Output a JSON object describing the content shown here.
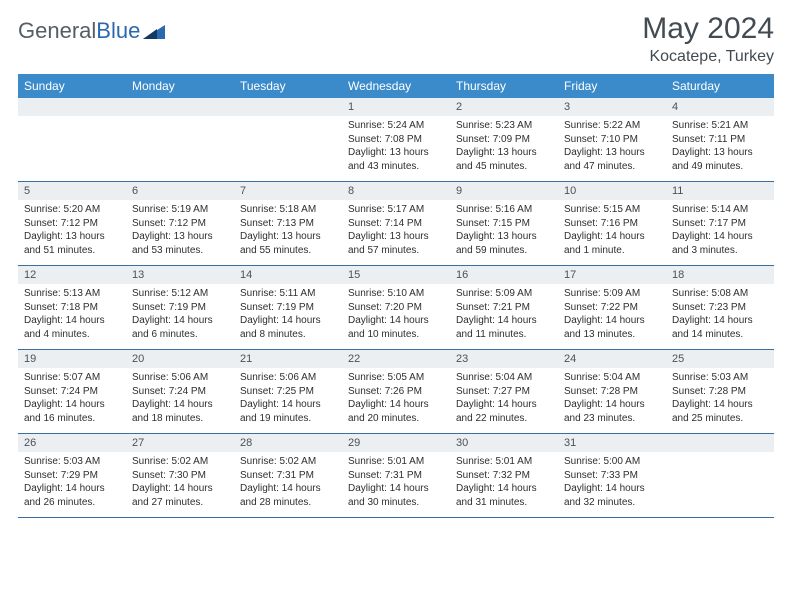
{
  "brand": {
    "part1": "General",
    "part2": "Blue"
  },
  "title": "May 2024",
  "location": "Kocatepe, Turkey",
  "dow": [
    "Sunday",
    "Monday",
    "Tuesday",
    "Wednesday",
    "Thursday",
    "Friday",
    "Saturday"
  ],
  "colors": {
    "header_bg": "#3b8bca",
    "header_text": "#ffffff",
    "daynum_bg": "#eceff1",
    "border": "#3b6fa0",
    "title_color": "#424a52"
  },
  "weeks": [
    [
      {
        "n": "",
        "sr": "",
        "ss": "",
        "dl": ""
      },
      {
        "n": "",
        "sr": "",
        "ss": "",
        "dl": ""
      },
      {
        "n": "",
        "sr": "",
        "ss": "",
        "dl": ""
      },
      {
        "n": "1",
        "sr": "Sunrise: 5:24 AM",
        "ss": "Sunset: 7:08 PM",
        "dl": "Daylight: 13 hours and 43 minutes."
      },
      {
        "n": "2",
        "sr": "Sunrise: 5:23 AM",
        "ss": "Sunset: 7:09 PM",
        "dl": "Daylight: 13 hours and 45 minutes."
      },
      {
        "n": "3",
        "sr": "Sunrise: 5:22 AM",
        "ss": "Sunset: 7:10 PM",
        "dl": "Daylight: 13 hours and 47 minutes."
      },
      {
        "n": "4",
        "sr": "Sunrise: 5:21 AM",
        "ss": "Sunset: 7:11 PM",
        "dl": "Daylight: 13 hours and 49 minutes."
      }
    ],
    [
      {
        "n": "5",
        "sr": "Sunrise: 5:20 AM",
        "ss": "Sunset: 7:12 PM",
        "dl": "Daylight: 13 hours and 51 minutes."
      },
      {
        "n": "6",
        "sr": "Sunrise: 5:19 AM",
        "ss": "Sunset: 7:12 PM",
        "dl": "Daylight: 13 hours and 53 minutes."
      },
      {
        "n": "7",
        "sr": "Sunrise: 5:18 AM",
        "ss": "Sunset: 7:13 PM",
        "dl": "Daylight: 13 hours and 55 minutes."
      },
      {
        "n": "8",
        "sr": "Sunrise: 5:17 AM",
        "ss": "Sunset: 7:14 PM",
        "dl": "Daylight: 13 hours and 57 minutes."
      },
      {
        "n": "9",
        "sr": "Sunrise: 5:16 AM",
        "ss": "Sunset: 7:15 PM",
        "dl": "Daylight: 13 hours and 59 minutes."
      },
      {
        "n": "10",
        "sr": "Sunrise: 5:15 AM",
        "ss": "Sunset: 7:16 PM",
        "dl": "Daylight: 14 hours and 1 minute."
      },
      {
        "n": "11",
        "sr": "Sunrise: 5:14 AM",
        "ss": "Sunset: 7:17 PM",
        "dl": "Daylight: 14 hours and 3 minutes."
      }
    ],
    [
      {
        "n": "12",
        "sr": "Sunrise: 5:13 AM",
        "ss": "Sunset: 7:18 PM",
        "dl": "Daylight: 14 hours and 4 minutes."
      },
      {
        "n": "13",
        "sr": "Sunrise: 5:12 AM",
        "ss": "Sunset: 7:19 PM",
        "dl": "Daylight: 14 hours and 6 minutes."
      },
      {
        "n": "14",
        "sr": "Sunrise: 5:11 AM",
        "ss": "Sunset: 7:19 PM",
        "dl": "Daylight: 14 hours and 8 minutes."
      },
      {
        "n": "15",
        "sr": "Sunrise: 5:10 AM",
        "ss": "Sunset: 7:20 PM",
        "dl": "Daylight: 14 hours and 10 minutes."
      },
      {
        "n": "16",
        "sr": "Sunrise: 5:09 AM",
        "ss": "Sunset: 7:21 PM",
        "dl": "Daylight: 14 hours and 11 minutes."
      },
      {
        "n": "17",
        "sr": "Sunrise: 5:09 AM",
        "ss": "Sunset: 7:22 PM",
        "dl": "Daylight: 14 hours and 13 minutes."
      },
      {
        "n": "18",
        "sr": "Sunrise: 5:08 AM",
        "ss": "Sunset: 7:23 PM",
        "dl": "Daylight: 14 hours and 14 minutes."
      }
    ],
    [
      {
        "n": "19",
        "sr": "Sunrise: 5:07 AM",
        "ss": "Sunset: 7:24 PM",
        "dl": "Daylight: 14 hours and 16 minutes."
      },
      {
        "n": "20",
        "sr": "Sunrise: 5:06 AM",
        "ss": "Sunset: 7:24 PM",
        "dl": "Daylight: 14 hours and 18 minutes."
      },
      {
        "n": "21",
        "sr": "Sunrise: 5:06 AM",
        "ss": "Sunset: 7:25 PM",
        "dl": "Daylight: 14 hours and 19 minutes."
      },
      {
        "n": "22",
        "sr": "Sunrise: 5:05 AM",
        "ss": "Sunset: 7:26 PM",
        "dl": "Daylight: 14 hours and 20 minutes."
      },
      {
        "n": "23",
        "sr": "Sunrise: 5:04 AM",
        "ss": "Sunset: 7:27 PM",
        "dl": "Daylight: 14 hours and 22 minutes."
      },
      {
        "n": "24",
        "sr": "Sunrise: 5:04 AM",
        "ss": "Sunset: 7:28 PM",
        "dl": "Daylight: 14 hours and 23 minutes."
      },
      {
        "n": "25",
        "sr": "Sunrise: 5:03 AM",
        "ss": "Sunset: 7:28 PM",
        "dl": "Daylight: 14 hours and 25 minutes."
      }
    ],
    [
      {
        "n": "26",
        "sr": "Sunrise: 5:03 AM",
        "ss": "Sunset: 7:29 PM",
        "dl": "Daylight: 14 hours and 26 minutes."
      },
      {
        "n": "27",
        "sr": "Sunrise: 5:02 AM",
        "ss": "Sunset: 7:30 PM",
        "dl": "Daylight: 14 hours and 27 minutes."
      },
      {
        "n": "28",
        "sr": "Sunrise: 5:02 AM",
        "ss": "Sunset: 7:31 PM",
        "dl": "Daylight: 14 hours and 28 minutes."
      },
      {
        "n": "29",
        "sr": "Sunrise: 5:01 AM",
        "ss": "Sunset: 7:31 PM",
        "dl": "Daylight: 14 hours and 30 minutes."
      },
      {
        "n": "30",
        "sr": "Sunrise: 5:01 AM",
        "ss": "Sunset: 7:32 PM",
        "dl": "Daylight: 14 hours and 31 minutes."
      },
      {
        "n": "31",
        "sr": "Sunrise: 5:00 AM",
        "ss": "Sunset: 7:33 PM",
        "dl": "Daylight: 14 hours and 32 minutes."
      },
      {
        "n": "",
        "sr": "",
        "ss": "",
        "dl": ""
      }
    ]
  ]
}
